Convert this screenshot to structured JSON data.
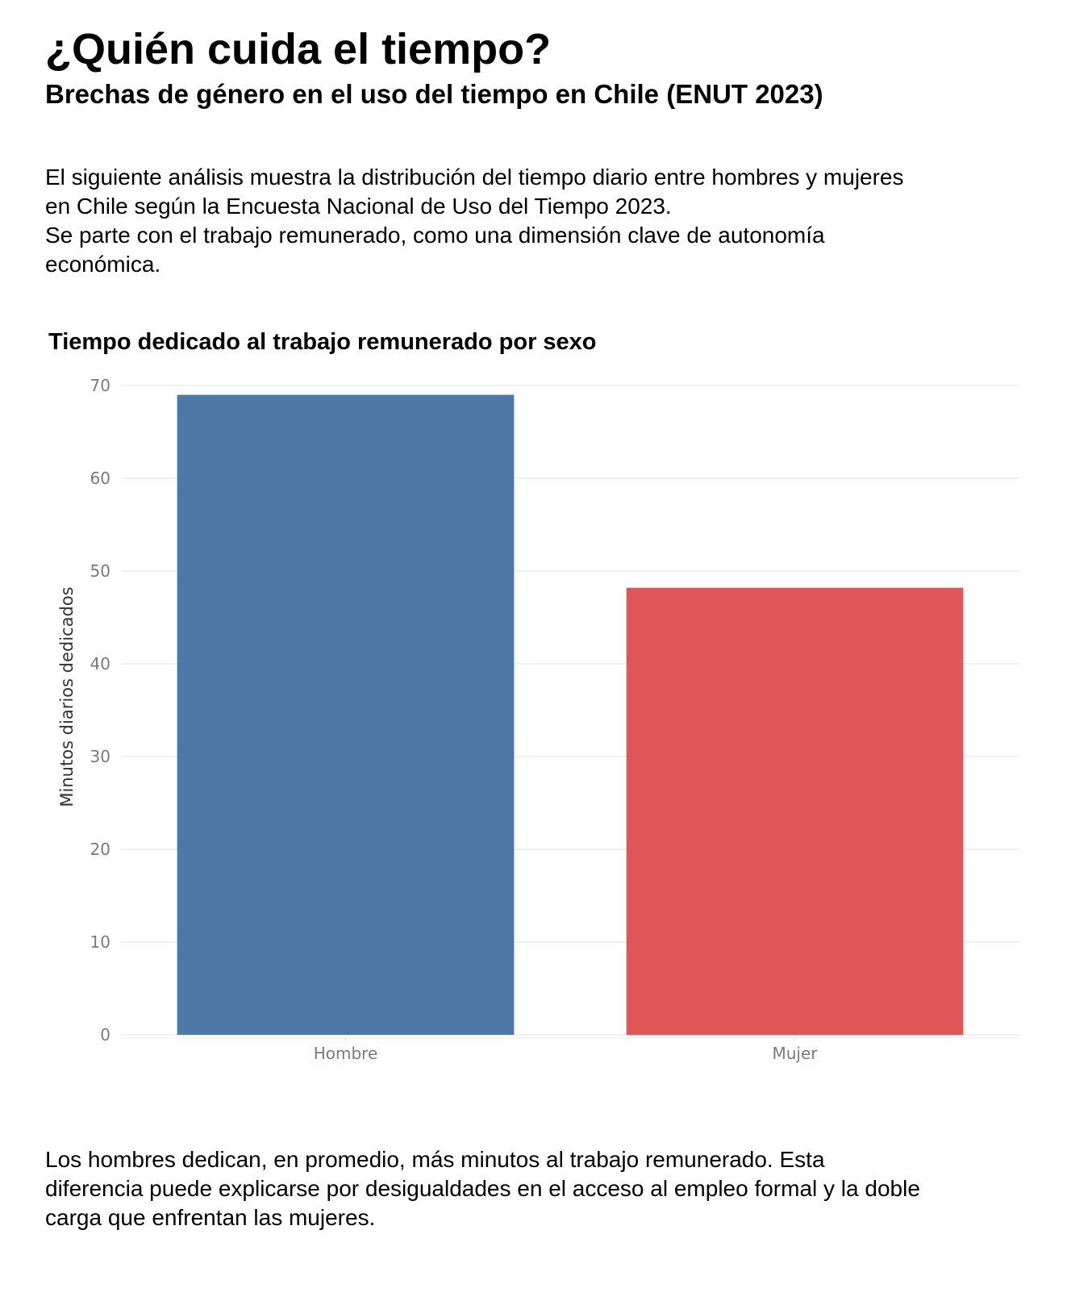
{
  "page": {
    "title": "¿Quién cuida el tiempo?",
    "subtitle": "Brechas de género en el uso del tiempo en Chile (ENUT 2023)",
    "intro_lines": [
      "El siguiente  análisis muestra la distribución del tiempo diario entre hombres y mujeres",
      "en Chile según la Encuesta Nacional de Uso del Tiempo 2023.",
      "Se parte con el trabajo remunerado, como una dimensión clave de autonomía",
      "económica."
    ],
    "conclusion_lines": [
      "Los hombres dedican, en promedio, más minutos al trabajo remunerado. Esta",
      "diferencia puede explicarse por desigualdades en el acceso al empleo formal y la doble",
      "carga que enfrentan las mujeres."
    ]
  },
  "chart_data": {
    "type": "bar",
    "title": "Tiempo dedicado al trabajo remunerado por sexo",
    "xlabel": "",
    "ylabel": "Minutos diarios dedicados",
    "categories": [
      "Hombre",
      "Mujer"
    ],
    "values": [
      69,
      48.2
    ],
    "colors": [
      "#4e79a7",
      "#e15759"
    ],
    "ylim": [
      0,
      70
    ],
    "yticks": [
      0,
      10,
      20,
      30,
      40,
      50,
      60,
      70
    ],
    "grid": true,
    "legend": "none"
  }
}
